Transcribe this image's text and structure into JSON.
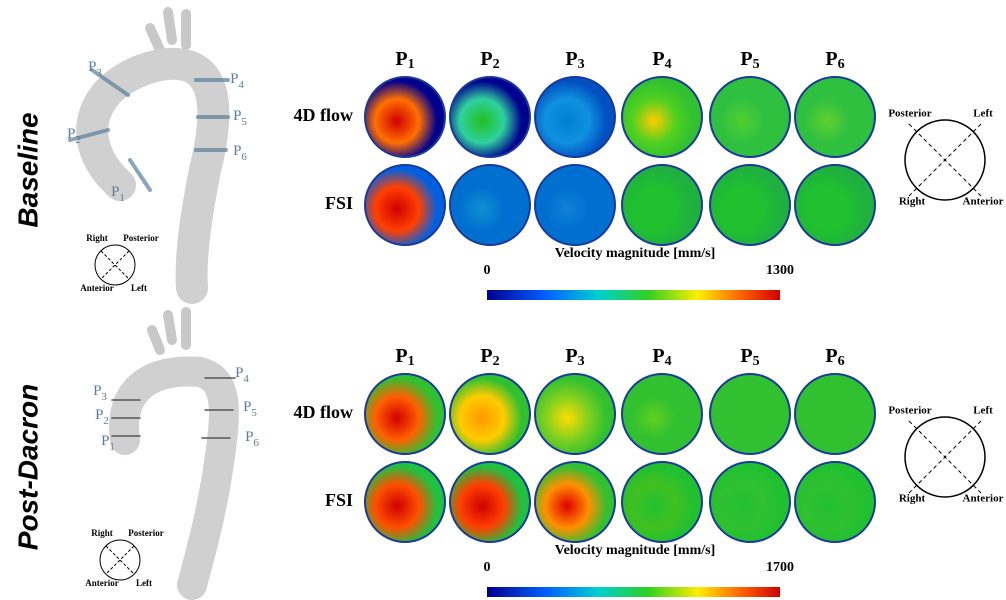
{
  "panels": [
    {
      "label": "Baseline",
      "planes": [
        {
          "main": "P",
          "sub": "1"
        },
        {
          "main": "P",
          "sub": "2"
        },
        {
          "main": "P",
          "sub": "3"
        },
        {
          "main": "P",
          "sub": "4"
        },
        {
          "main": "P",
          "sub": "5"
        },
        {
          "main": "P",
          "sub": "6"
        }
      ],
      "rows": [
        "4D flow",
        "FSI"
      ],
      "orientation_small": [
        "Right",
        "Posterior",
        "Anterior",
        "Left"
      ],
      "orientation_large": [
        "Posterior",
        "Left",
        "Right",
        "Anterior"
      ],
      "colorbar": {
        "title": "Velocity magnitude [mm/s]",
        "min": "0",
        "max": "1300"
      }
    },
    {
      "label": "Post-Dacron",
      "planes": [
        {
          "main": "P",
          "sub": "1"
        },
        {
          "main": "P",
          "sub": "2"
        },
        {
          "main": "P",
          "sub": "3"
        },
        {
          "main": "P",
          "sub": "4"
        },
        {
          "main": "P",
          "sub": "5"
        },
        {
          "main": "P",
          "sub": "6"
        }
      ],
      "rows": [
        "4D flow",
        "FSI"
      ],
      "orientation_small": [
        "Right",
        "Posterior",
        "Anterior",
        "Left"
      ],
      "orientation_large": [
        "Posterior",
        "Left",
        "Right",
        "Anterior"
      ],
      "colorbar": {
        "title": "Velocity magnitude [mm/s]",
        "min": "0",
        "max": "1700"
      }
    }
  ]
}
